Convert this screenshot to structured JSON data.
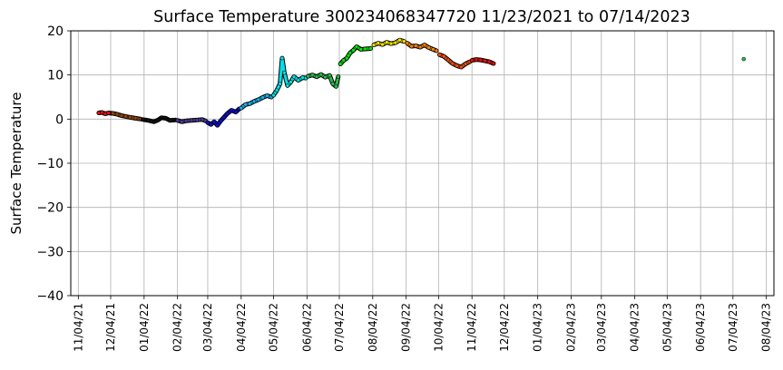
{
  "chart_data": {
    "type": "scatter",
    "title": "Surface Temperature 300234068347720  11/23/2021 to 07/14/2023",
    "ylabel": "Surface Temperature",
    "xlabel": "",
    "ylim": [
      -40,
      20
    ],
    "yticks": [
      20,
      10,
      0,
      -10,
      -20,
      -30,
      -40
    ],
    "xlim": [
      "2021-10-28",
      "2023-08-11"
    ],
    "xticks": [
      "11/04/21",
      "12/04/21",
      "01/04/22",
      "02/04/22",
      "03/04/22",
      "04/04/22",
      "05/04/22",
      "06/04/22",
      "07/04/22",
      "08/04/22",
      "09/04/22",
      "10/04/22",
      "11/04/22",
      "12/04/22",
      "01/04/23",
      "02/04/23",
      "03/04/23",
      "04/04/23",
      "05/04/23",
      "06/04/23",
      "07/04/23",
      "08/04/23"
    ],
    "grid": true,
    "legend": "none",
    "point_color_note": "points colored by month (hue cycle)",
    "series": [
      {
        "color": "#e01010",
        "points": [
          [
            "2021-11-23",
            1.4
          ],
          [
            "2021-11-26",
            1.5
          ],
          [
            "2021-11-29",
            1.2
          ],
          [
            "2021-12-02",
            1.4
          ],
          [
            "2021-12-05",
            1.3
          ]
        ]
      },
      {
        "color": "#8b4513",
        "points": [
          [
            "2021-12-06",
            1.3
          ],
          [
            "2021-12-10",
            1.1
          ],
          [
            "2021-12-14",
            0.8
          ],
          [
            "2021-12-18",
            0.6
          ],
          [
            "2021-12-22",
            0.4
          ],
          [
            "2021-12-27",
            0.2
          ],
          [
            "2022-01-01",
            0.0
          ]
        ]
      },
      {
        "color": "#111111",
        "points": [
          [
            "2022-01-03",
            -0.1
          ],
          [
            "2022-01-08",
            -0.3
          ],
          [
            "2022-01-13",
            -0.6
          ],
          [
            "2022-01-17",
            -0.2
          ],
          [
            "2022-01-20",
            0.3
          ],
          [
            "2022-01-24",
            0.2
          ],
          [
            "2022-01-28",
            -0.3
          ],
          [
            "2022-02-02",
            -0.2
          ]
        ]
      },
      {
        "color": "#4b3a8a",
        "points": [
          [
            "2022-02-04",
            -0.3
          ],
          [
            "2022-02-08",
            -0.6
          ],
          [
            "2022-02-12",
            -0.4
          ],
          [
            "2022-02-17",
            -0.3
          ],
          [
            "2022-02-22",
            -0.2
          ],
          [
            "2022-02-27",
            -0.1
          ],
          [
            "2022-03-02",
            -0.4
          ]
        ]
      },
      {
        "color": "#1010d0",
        "points": [
          [
            "2022-03-04",
            -0.8
          ],
          [
            "2022-03-07",
            -1.2
          ],
          [
            "2022-03-10",
            -0.6
          ],
          [
            "2022-03-13",
            -1.4
          ],
          [
            "2022-03-16",
            -0.4
          ],
          [
            "2022-03-19",
            0.4
          ],
          [
            "2022-03-22",
            1.2
          ],
          [
            "2022-03-26",
            2.0
          ],
          [
            "2022-03-30",
            1.6
          ],
          [
            "2022-04-02",
            2.3
          ]
        ]
      },
      {
        "color": "#1ab0e8",
        "points": [
          [
            "2022-04-04",
            2.5
          ],
          [
            "2022-04-08",
            3.3
          ],
          [
            "2022-04-12",
            3.5
          ],
          [
            "2022-04-16",
            4.0
          ],
          [
            "2022-04-20",
            4.4
          ],
          [
            "2022-04-24",
            4.9
          ],
          [
            "2022-04-28",
            5.3
          ],
          [
            "2022-05-02",
            5.0
          ]
        ]
      },
      {
        "color": "#00e0e8",
        "points": [
          [
            "2022-05-04",
            5.4
          ],
          [
            "2022-05-07",
            6.5
          ],
          [
            "2022-05-10",
            8.0
          ],
          [
            "2022-05-12",
            13.8
          ],
          [
            "2022-05-14",
            10.5
          ],
          [
            "2022-05-17",
            7.6
          ],
          [
            "2022-05-20",
            8.4
          ],
          [
            "2022-05-23",
            9.6
          ],
          [
            "2022-05-27",
            8.8
          ],
          [
            "2022-05-31",
            9.4
          ],
          [
            "2022-06-03",
            9.3
          ]
        ]
      },
      {
        "color": "#2db84a",
        "points": [
          [
            "2022-06-05",
            9.7
          ],
          [
            "2022-06-09",
            10.0
          ],
          [
            "2022-06-13",
            9.6
          ],
          [
            "2022-06-17",
            10.1
          ],
          [
            "2022-06-21",
            9.5
          ],
          [
            "2022-06-25",
            9.9
          ],
          [
            "2022-06-28",
            8.0
          ],
          [
            "2022-07-01",
            7.4
          ],
          [
            "2022-07-03",
            9.6
          ]
        ]
      },
      {
        "color": "#10e010",
        "points": [
          [
            "2022-07-05",
            12.5
          ],
          [
            "2022-07-08",
            13.3
          ],
          [
            "2022-07-11",
            13.8
          ],
          [
            "2022-07-14",
            15.0
          ],
          [
            "2022-07-17",
            15.6
          ],
          [
            "2022-07-20",
            16.4
          ],
          [
            "2022-07-24",
            15.8
          ],
          [
            "2022-07-28",
            15.9
          ],
          [
            "2022-08-02",
            16.0
          ]
        ]
      },
      {
        "color": "#f0e000",
        "points": [
          [
            "2022-08-05",
            16.8
          ],
          [
            "2022-08-09",
            17.2
          ],
          [
            "2022-08-13",
            16.9
          ],
          [
            "2022-08-17",
            17.4
          ],
          [
            "2022-08-21",
            17.1
          ],
          [
            "2022-08-25",
            17.3
          ],
          [
            "2022-08-29",
            17.9
          ],
          [
            "2022-09-02",
            17.6
          ]
        ]
      },
      {
        "color": "#f08010",
        "points": [
          [
            "2022-09-05",
            17.2
          ],
          [
            "2022-09-09",
            16.5
          ],
          [
            "2022-09-13",
            16.6
          ],
          [
            "2022-09-17",
            16.3
          ],
          [
            "2022-09-21",
            16.8
          ],
          [
            "2022-09-25",
            16.2
          ],
          [
            "2022-09-29",
            15.8
          ],
          [
            "2022-10-02",
            15.5
          ]
        ]
      },
      {
        "color": "#f05010",
        "points": [
          [
            "2022-10-05",
            14.6
          ],
          [
            "2022-10-09",
            14.2
          ],
          [
            "2022-10-13",
            13.4
          ],
          [
            "2022-10-17",
            12.6
          ],
          [
            "2022-10-21",
            12.1
          ],
          [
            "2022-10-25",
            11.8
          ],
          [
            "2022-10-29",
            12.5
          ],
          [
            "2022-11-02",
            13.0
          ]
        ]
      },
      {
        "color": "#e01010",
        "points": [
          [
            "2022-11-04",
            13.3
          ],
          [
            "2022-11-08",
            13.5
          ],
          [
            "2022-11-12",
            13.4
          ],
          [
            "2022-11-16",
            13.2
          ],
          [
            "2022-11-20",
            13.0
          ],
          [
            "2022-11-24",
            12.6
          ]
        ]
      },
      {
        "color": "#2db84a",
        "points": [
          [
            "2023-07-14",
            13.6
          ]
        ]
      }
    ]
  }
}
